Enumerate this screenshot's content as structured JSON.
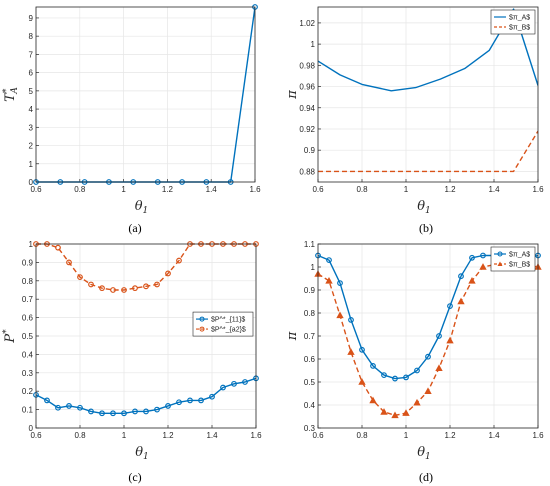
{
  "chart_data": [
    {
      "panel": "a",
      "type": "line",
      "caption": "(a)",
      "xlabel": "θ",
      "xlabel_sub": "1",
      "ylabel": "T",
      "ylabel_sup": "*",
      "ylabel_sub": "A",
      "xlim": [
        0.6,
        1.6
      ],
      "ylim": [
        0,
        9.6
      ],
      "xticks": [
        "0.6",
        "0.8",
        "1",
        "1.2",
        "1.4",
        "1.6"
      ],
      "yticks": [
        "0",
        "1",
        "2",
        "3",
        "4",
        "5",
        "6",
        "7",
        "8",
        "9"
      ],
      "grid": true,
      "legend": null,
      "series": [
        {
          "color": "#0072BD",
          "style": "solid",
          "marker": "circle",
          "x": [
            0.6,
            0.711,
            0.822,
            0.933,
            1.044,
            1.156,
            1.267,
            1.378,
            1.489,
            1.6
          ],
          "y": [
            0,
            0,
            0,
            0,
            0,
            0,
            0,
            0,
            0,
            9.6
          ]
        }
      ]
    },
    {
      "panel": "b",
      "type": "line",
      "caption": "(b)",
      "xlabel": "θ",
      "xlabel_sub": "1",
      "ylabel": "π",
      "xlim": [
        0.6,
        1.6
      ],
      "ylim": [
        0.87,
        1.035
      ],
      "xticks": [
        "0.6",
        "0.8",
        "1",
        "1.2",
        "1.4",
        "1.6"
      ],
      "yticks": [
        "0.88",
        "0.9",
        "0.92",
        "0.94",
        "0.96",
        "0.98",
        "1",
        "1.02"
      ],
      "grid": true,
      "legend": "top-right",
      "series": [
        {
          "name": "$π_A$",
          "color": "#0072BD",
          "style": "solid",
          "x": [
            0.6,
            0.7,
            0.8,
            0.933,
            1.044,
            1.156,
            1.267,
            1.378,
            1.489,
            1.6
          ],
          "y": [
            0.984,
            0.971,
            0.962,
            0.956,
            0.959,
            0.967,
            0.977,
            0.994,
            1.033,
            0.961
          ]
        },
        {
          "name": "$π_B$",
          "color": "#D95319",
          "style": "dashed",
          "x": [
            0.6,
            1.489,
            1.6
          ],
          "y": [
            0.88,
            0.88,
            0.918
          ]
        }
      ]
    },
    {
      "panel": "c",
      "type": "line",
      "caption": "(c)",
      "xlabel": "θ",
      "xlabel_sub": "1",
      "ylabel": "P",
      "ylabel_sup": "*",
      "xlim": [
        0.6,
        1.6
      ],
      "ylim": [
        0,
        1
      ],
      "xticks": [
        "0.6",
        "0.8",
        "1",
        "1.2",
        "1.4",
        "1.6"
      ],
      "yticks": [
        "0",
        "0.1",
        "0.2",
        "0.3",
        "0.4",
        "0.5",
        "0.6",
        "0.7",
        "0.8",
        "0.9",
        "1"
      ],
      "grid": true,
      "legend": "middle-right",
      "series": [
        {
          "name": "$P^*_{11}$",
          "color": "#0072BD",
          "style": "solid",
          "marker": "circle",
          "x": [
            0.6,
            0.65,
            0.7,
            0.75,
            0.8,
            0.85,
            0.9,
            0.95,
            1.0,
            1.05,
            1.1,
            1.15,
            1.2,
            1.25,
            1.3,
            1.35,
            1.4,
            1.45,
            1.5,
            1.55,
            1.6
          ],
          "y": [
            0.18,
            0.15,
            0.11,
            0.12,
            0.11,
            0.09,
            0.08,
            0.08,
            0.08,
            0.09,
            0.09,
            0.1,
            0.12,
            0.14,
            0.15,
            0.15,
            0.17,
            0.22,
            0.24,
            0.25,
            0.27
          ]
        },
        {
          "name": "$P^*_{a2}$",
          "color": "#D95319",
          "style": "dashed",
          "marker": "circle",
          "x": [
            0.6,
            0.65,
            0.7,
            0.75,
            0.8,
            0.85,
            0.9,
            0.95,
            1.0,
            1.05,
            1.1,
            1.15,
            1.2,
            1.25,
            1.3,
            1.35,
            1.4,
            1.45,
            1.5,
            1.55,
            1.6
          ],
          "y": [
            1.0,
            1.0,
            0.98,
            0.9,
            0.82,
            0.78,
            0.76,
            0.75,
            0.75,
            0.76,
            0.77,
            0.78,
            0.84,
            0.91,
            1.0,
            1.0,
            1.0,
            1.0,
            1.0,
            1.0,
            1.0
          ]
        }
      ]
    },
    {
      "panel": "d",
      "type": "line",
      "caption": "(d)",
      "xlabel": "θ",
      "xlabel_sub": "1",
      "ylabel": "π",
      "xlim": [
        0.6,
        1.6
      ],
      "ylim": [
        0.3,
        1.1
      ],
      "xticks": [
        "0.6",
        "0.8",
        "1",
        "1.2",
        "1.4",
        "1.6"
      ],
      "yticks": [
        "0.3",
        "0.4",
        "0.5",
        "0.6",
        "0.7",
        "0.8",
        "0.9",
        "1",
        "1.1"
      ],
      "grid": true,
      "legend": "top-right",
      "series": [
        {
          "name": "$π_A$",
          "color": "#0072BD",
          "style": "solid",
          "marker": "circle",
          "x": [
            0.6,
            0.65,
            0.7,
            0.75,
            0.8,
            0.85,
            0.9,
            0.95,
            1.0,
            1.05,
            1.1,
            1.15,
            1.2,
            1.25,
            1.3,
            1.35,
            1.4,
            1.45,
            1.5,
            1.55,
            1.6
          ],
          "y": [
            1.05,
            1.03,
            0.93,
            0.77,
            0.64,
            0.57,
            0.53,
            0.515,
            0.52,
            0.55,
            0.61,
            0.7,
            0.83,
            0.96,
            1.04,
            1.05,
            1.05,
            1.05,
            1.05,
            1.04,
            1.05
          ]
        },
        {
          "name": "$π_B$",
          "color": "#D95319",
          "style": "dashed",
          "marker": "triangle",
          "x": [
            0.6,
            0.65,
            0.7,
            0.75,
            0.8,
            0.85,
            0.9,
            0.95,
            1.0,
            1.05,
            1.1,
            1.15,
            1.2,
            1.25,
            1.3,
            1.35,
            1.4,
            1.45,
            1.5,
            1.55,
            1.6
          ],
          "y": [
            0.97,
            0.94,
            0.79,
            0.63,
            0.5,
            0.42,
            0.37,
            0.355,
            0.365,
            0.41,
            0.46,
            0.56,
            0.68,
            0.85,
            0.94,
            1.0,
            1.01,
            1.01,
            1.01,
            1.01,
            1.0
          ]
        }
      ]
    }
  ]
}
